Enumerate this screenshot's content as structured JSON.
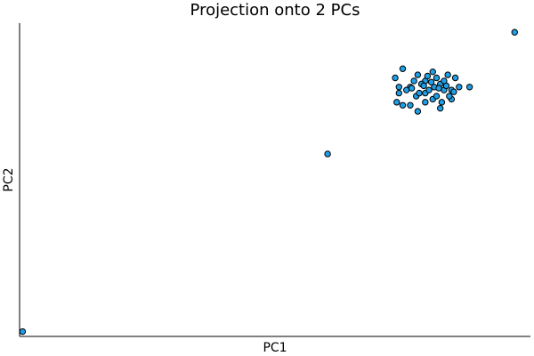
{
  "chart_data": {
    "type": "scatter",
    "title": "Projection onto 2 PCs",
    "xlabel": "PC1",
    "ylabel": "PC2",
    "xlim": [
      -4.1,
      2.7
    ],
    "ylim": [
      -4.0,
      1.15
    ],
    "grid": false,
    "legend": "none",
    "x_ticks": [],
    "y_ticks": [],
    "series": [
      {
        "color": "#1F9FE6",
        "points": [
          [
            -4.06,
            -3.92
          ],
          [
            0.0,
            -1.0
          ],
          [
            2.49,
            1.0
          ],
          [
            1.89,
            0.1
          ],
          [
            0.9,
            0.25
          ],
          [
            1.0,
            0.4
          ],
          [
            1.1,
            0.1
          ],
          [
            1.2,
            0.3
          ],
          [
            1.3,
            0.2
          ],
          [
            1.4,
            0.35
          ],
          [
            1.5,
            0.15
          ],
          [
            1.6,
            0.3
          ],
          [
            1.7,
            0.25
          ],
          [
            1.3,
            0.0
          ],
          [
            1.1,
            -0.2
          ],
          [
            1.2,
            -0.3
          ],
          [
            1.4,
            -0.1
          ],
          [
            1.5,
            -0.25
          ],
          [
            1.55,
            0.05
          ],
          [
            1.65,
            -0.1
          ],
          [
            1.75,
            0.1
          ],
          [
            1.25,
            0.15
          ],
          [
            1.35,
            0.05
          ],
          [
            1.45,
            0.25
          ],
          [
            1.15,
            0.2
          ],
          [
            1.05,
            0.05
          ],
          [
            0.95,
            0.0
          ],
          [
            0.95,
            0.1
          ],
          [
            0.92,
            -0.15
          ],
          [
            1.0,
            -0.2
          ],
          [
            1.65,
            0.05
          ],
          [
            1.3,
            -0.15
          ],
          [
            1.45,
            -0.05
          ],
          [
            1.42,
            0.1
          ],
          [
            1.33,
            0.28
          ],
          [
            1.62,
            -0.05
          ],
          [
            1.52,
            -0.15
          ],
          [
            1.18,
            -0.05
          ],
          [
            1.28,
            0.12
          ],
          [
            1.38,
            0.18
          ],
          [
            1.48,
            0.08
          ],
          [
            1.58,
            0.12
          ],
          [
            1.68,
            0.02
          ],
          [
            1.22,
            0.0
          ],
          [
            1.12,
            0.08
          ],
          [
            1.55,
            0.2
          ]
        ]
      }
    ]
  }
}
